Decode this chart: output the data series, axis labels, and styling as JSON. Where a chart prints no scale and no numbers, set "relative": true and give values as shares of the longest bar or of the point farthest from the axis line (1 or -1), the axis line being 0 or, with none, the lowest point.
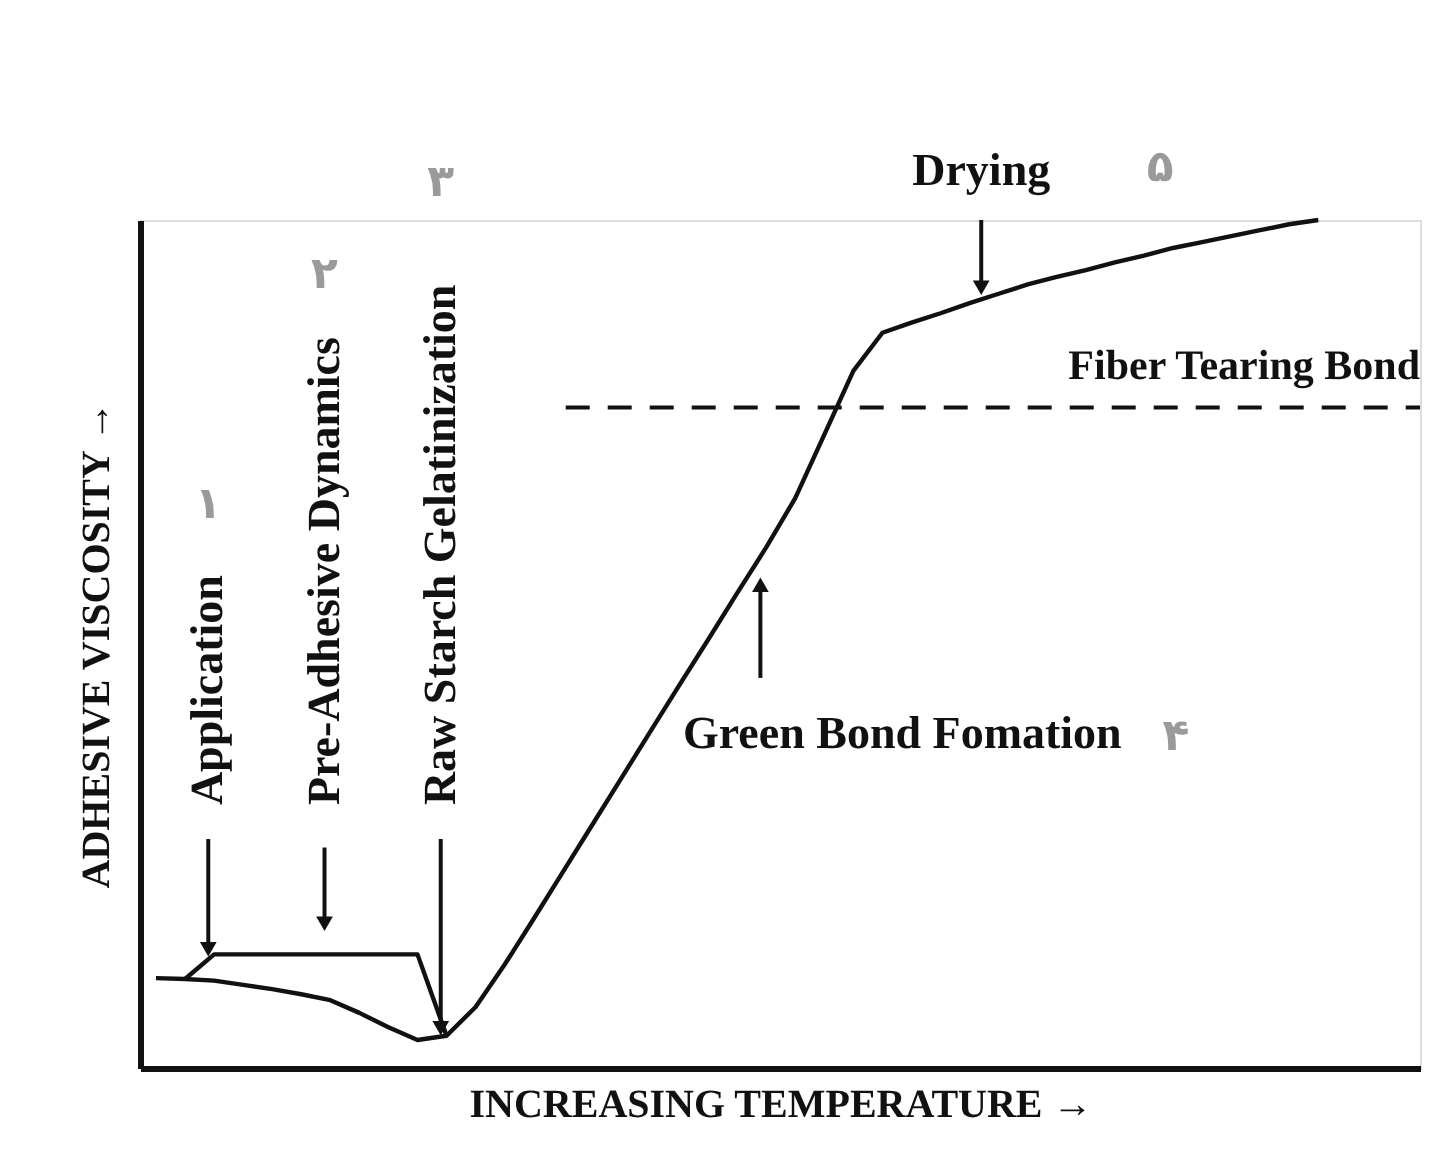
{
  "chart_data": {
    "type": "line",
    "relative": true,
    "xlabel": "INCREASING TEMPERATURE →",
    "ylabel": "ADHESIVE VISCOSITY →",
    "tick_labels": false,
    "grid": false,
    "marker": "none",
    "line_style": "solid",
    "categories": [
      null,
      null,
      null,
      null,
      null,
      null,
      null,
      null,
      null,
      null,
      null,
      null,
      null,
      null,
      null,
      null,
      null,
      null,
      null,
      null,
      null,
      null,
      null,
      null,
      null,
      null,
      null,
      null,
      null,
      null,
      null,
      null,
      null,
      null,
      null,
      null,
      null,
      null,
      null,
      null,
      null
    ],
    "series": [
      {
        "color": "#111111",
        "values": [
          0.106,
          0.105,
          0.103,
          0.098,
          0.093,
          0.087,
          0.08,
          0.065,
          0.048,
          0.033,
          0.038,
          0.072,
          0.122,
          0.176,
          0.231,
          0.286,
          0.341,
          0.396,
          0.451,
          0.505,
          0.56,
          0.614,
          0.672,
          0.747,
          0.822,
          0.867,
          0.879,
          0.89,
          0.902,
          0.913,
          0.924,
          0.933,
          0.941,
          0.95,
          0.958,
          0.967,
          0.974,
          0.981,
          0.988,
          0.995,
          1.0
        ]
      },
      {
        "color": "#111111",
        "values": [
          null,
          0.105,
          0.134,
          0.134,
          0.134,
          0.134,
          0.134,
          0.134,
          0.134,
          0.134,
          0.038,
          null,
          null,
          null,
          null,
          null,
          null,
          null,
          null,
          null,
          null,
          null,
          null,
          null,
          null,
          null,
          null,
          null,
          null,
          null,
          null,
          null,
          null,
          null,
          null,
          null,
          null,
          null,
          null,
          null,
          null
        ]
      }
    ],
    "ref_lines": [
      {
        "axis": "y",
        "value": 0.779,
        "label": "Fiber Tearing Bond",
        "line_style": "dashed",
        "color": "#111111"
      }
    ],
    "annotations": [
      "Application",
      "Pre-Adhesive Dynamics",
      "Raw Starch Gelatinization",
      "Green Bond Fomation",
      "Drying",
      "۱",
      "۲",
      "۳",
      "۴",
      "۵"
    ]
  }
}
